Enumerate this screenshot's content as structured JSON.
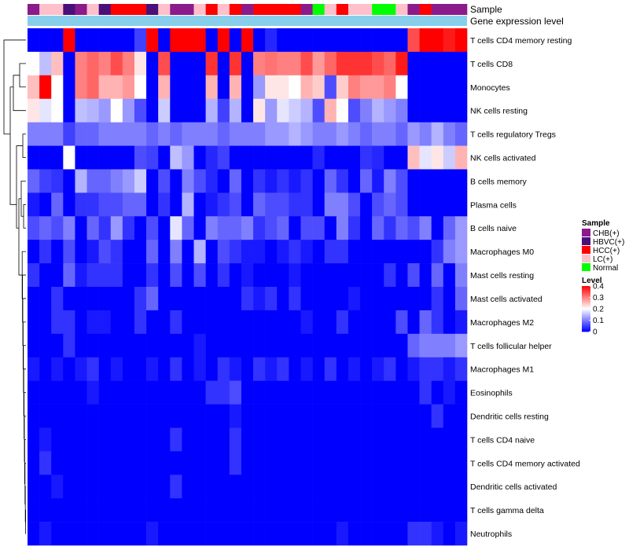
{
  "chart_data": {
    "type": "heatmap",
    "title": "",
    "annotation_labels": [
      "Sample",
      "Gene expression level"
    ],
    "rows": [
      "T cells CD4 memory resting",
      "T cells CD8",
      "Monocytes",
      "NK cells resting",
      "T cells regulatory  Tregs",
      "NK cells activated",
      "B cells memory",
      "Plasma cells",
      "B cells naive",
      "Macrophages M0",
      "Mast cells resting",
      "Mast cells activated",
      "Macrophages M2",
      "T cells follicular helper",
      "Macrophages M1",
      "Eosinophils",
      "Dendritic cells resting",
      "T cells CD4 naive",
      "T cells CD4 memory activated",
      "Dendritic cells activated",
      "T cells gamma delta",
      "Neutrophils"
    ],
    "column_count": 37,
    "sample_groups": [
      "CHB(+)",
      "LC(+)",
      "LC(+)",
      "HBVC(+)",
      "CHB(+)",
      "LC(+)",
      "HBVC(+)",
      "HCC(+)",
      "HCC(+)",
      "HCC(+)",
      "HBVC(+)",
      "LC(+)",
      "CHB(+)",
      "CHB(+)",
      "LC(+)",
      "HCC(+)",
      "LC(+)",
      "HCC(+)",
      "CHB(+)",
      "HCC(+)",
      "HCC(+)",
      "HCC(+)",
      "HCC(+)",
      "CHB(+)",
      "Normal",
      "LC(+)",
      "HCC(+)",
      "LC(+)",
      "LC(+)",
      "Normal",
      "Normal",
      "LC(+)",
      "CHB(+)",
      "HCC(+)",
      "CHB(+)",
      "CHB(+)",
      "CHB(+)"
    ],
    "values": [
      [
        0.0,
        0.0,
        0.0,
        0.4,
        0.0,
        0.0,
        0.0,
        0.0,
        0.0,
        0.05,
        0.4,
        0.0,
        0.4,
        0.4,
        0.4,
        0.0,
        0.4,
        0.0,
        0.4,
        0.0,
        0.03,
        0.0,
        0.0,
        0.0,
        0.0,
        0.0,
        0.0,
        0.0,
        0.0,
        0.0,
        0.0,
        0.0,
        0.34,
        0.4,
        0.4,
        0.38,
        0.4
      ],
      [
        0.2,
        0.15,
        0.25,
        0.0,
        0.3,
        0.32,
        0.3,
        0.34,
        0.3,
        0.22,
        0.0,
        0.34,
        0.0,
        0.0,
        0.0,
        0.36,
        0.0,
        0.36,
        0.0,
        0.3,
        0.31,
        0.3,
        0.3,
        0.34,
        0.28,
        0.32,
        0.36,
        0.36,
        0.36,
        0.34,
        0.32,
        0.38,
        0.0,
        0.0,
        0.0,
        0.0,
        0.0
      ],
      [
        0.25,
        0.4,
        0.2,
        0.0,
        0.3,
        0.32,
        0.26,
        0.26,
        0.28,
        0.2,
        0.0,
        0.26,
        0.0,
        0.0,
        0.0,
        0.26,
        0.0,
        0.26,
        0.0,
        0.12,
        0.22,
        0.22,
        0.2,
        0.26,
        0.24,
        0.06,
        0.24,
        0.3,
        0.28,
        0.28,
        0.3,
        0.2,
        0.0,
        0.0,
        0.0,
        0.0,
        0.0
      ],
      [
        0.22,
        0.18,
        0.2,
        0.0,
        0.15,
        0.14,
        0.12,
        0.2,
        0.12,
        0.06,
        0.0,
        0.16,
        0.0,
        0.0,
        0.0,
        0.14,
        0.05,
        0.14,
        0.0,
        0.22,
        0.12,
        0.18,
        0.16,
        0.14,
        0.06,
        0.26,
        0.2,
        0.06,
        0.1,
        0.14,
        0.12,
        0.1,
        0.0,
        0.0,
        0.0,
        0.0,
        0.0
      ],
      [
        0.1,
        0.1,
        0.1,
        0.05,
        0.08,
        0.08,
        0.1,
        0.1,
        0.1,
        0.1,
        0.08,
        0.1,
        0.08,
        0.1,
        0.1,
        0.1,
        0.08,
        0.1,
        0.1,
        0.1,
        0.12,
        0.12,
        0.14,
        0.12,
        0.1,
        0.1,
        0.12,
        0.1,
        0.08,
        0.1,
        0.1,
        0.08,
        0.12,
        0.1,
        0.14,
        0.1,
        0.08
      ],
      [
        0.0,
        0.0,
        0.0,
        0.2,
        0.0,
        0.0,
        0.0,
        0.0,
        0.0,
        0.06,
        0.05,
        0.0,
        0.15,
        0.12,
        0.0,
        0.03,
        0.05,
        0.0,
        0.0,
        0.0,
        0.0,
        0.0,
        0.0,
        0.0,
        0.03,
        0.0,
        0.0,
        0.0,
        0.04,
        0.03,
        0.0,
        0.0,
        0.25,
        0.18,
        0.22,
        0.16,
        0.26
      ],
      [
        0.08,
        0.05,
        0.04,
        0.0,
        0.14,
        0.08,
        0.08,
        0.1,
        0.12,
        0.16,
        0.0,
        0.06,
        0.0,
        0.1,
        0.06,
        0.03,
        0.0,
        0.08,
        0.0,
        0.04,
        0.02,
        0.04,
        0.02,
        0.04,
        0.0,
        0.08,
        0.04,
        0.0,
        0.08,
        0.02,
        0.1,
        0.06,
        0.0,
        0.0,
        0.0,
        0.0,
        0.0
      ],
      [
        0.02,
        0.0,
        0.08,
        0.0,
        0.04,
        0.04,
        0.06,
        0.06,
        0.08,
        0.08,
        0.0,
        0.04,
        0.0,
        0.14,
        0.0,
        0.02,
        0.04,
        0.06,
        0.0,
        0.08,
        0.06,
        0.06,
        0.04,
        0.04,
        0.0,
        0.1,
        0.1,
        0.06,
        0.0,
        0.06,
        0.08,
        0.06,
        0.0,
        0.0,
        0.0,
        0.0,
        0.0
      ],
      [
        0.06,
        0.08,
        0.06,
        0.1,
        0.0,
        0.08,
        0.04,
        0.12,
        0.04,
        0.0,
        0.06,
        0.0,
        0.18,
        0.08,
        0.0,
        0.1,
        0.08,
        0.08,
        0.1,
        0.04,
        0.06,
        0.08,
        0.0,
        0.06,
        0.06,
        0.0,
        0.1,
        0.04,
        0.0,
        0.08,
        0.04,
        0.08,
        0.06,
        0.1,
        0.0,
        0.08,
        0.12
      ],
      [
        0.0,
        0.04,
        0.0,
        0.06,
        0.0,
        0.02,
        0.06,
        0.04,
        0.0,
        0.0,
        0.08,
        0.0,
        0.1,
        0.0,
        0.14,
        0.0,
        0.06,
        0.04,
        0.02,
        0.02,
        0.0,
        0.02,
        0.04,
        0.02,
        0.0,
        0.04,
        0.04,
        0.0,
        0.0,
        0.0,
        0.0,
        0.0,
        0.0,
        0.0,
        0.04,
        0.1,
        0.12
      ],
      [
        0.04,
        0.0,
        0.0,
        0.08,
        0.02,
        0.04,
        0.04,
        0.04,
        0.0,
        0.0,
        0.04,
        0.0,
        0.06,
        0.0,
        0.06,
        0.0,
        0.04,
        0.0,
        0.02,
        0.0,
        0.0,
        0.0,
        0.02,
        0.0,
        0.0,
        0.0,
        0.0,
        0.0,
        0.0,
        0.0,
        0.04,
        0.0,
        0.06,
        0.0,
        0.08,
        0.0,
        0.1
      ],
      [
        0.0,
        0.0,
        0.04,
        0.0,
        0.0,
        0.0,
        0.0,
        0.0,
        0.0,
        0.04,
        0.08,
        0.0,
        0.0,
        0.0,
        0.0,
        0.0,
        0.0,
        0.0,
        0.04,
        0.02,
        0.04,
        0.0,
        0.04,
        0.0,
        0.0,
        0.0,
        0.0,
        0.02,
        0.0,
        0.0,
        0.0,
        0.0,
        0.0,
        0.0,
        0.04,
        0.0,
        0.08
      ],
      [
        0.0,
        0.0,
        0.04,
        0.04,
        0.0,
        0.02,
        0.02,
        0.0,
        0.0,
        0.04,
        0.0,
        0.0,
        0.04,
        0.0,
        0.0,
        0.0,
        0.0,
        0.0,
        0.0,
        0.0,
        0.0,
        0.0,
        0.0,
        0.02,
        0.0,
        0.0,
        0.04,
        0.0,
        0.0,
        0.0,
        0.0,
        0.06,
        0.0,
        0.08,
        0.04,
        0.0,
        0.02
      ],
      [
        0.0,
        0.0,
        0.0,
        0.04,
        0.0,
        0.0,
        0.0,
        0.0,
        0.0,
        0.0,
        0.0,
        0.0,
        0.0,
        0.0,
        0.02,
        0.0,
        0.0,
        0.0,
        0.0,
        0.0,
        0.0,
        0.0,
        0.0,
        0.0,
        0.0,
        0.0,
        0.0,
        0.0,
        0.0,
        0.0,
        0.0,
        0.0,
        0.08,
        0.1,
        0.1,
        0.1,
        0.12
      ],
      [
        0.02,
        0.0,
        0.02,
        0.0,
        0.02,
        0.04,
        0.0,
        0.02,
        0.0,
        0.0,
        0.02,
        0.0,
        0.04,
        0.0,
        0.02,
        0.0,
        0.04,
        0.02,
        0.0,
        0.04,
        0.02,
        0.04,
        0.0,
        0.02,
        0.0,
        0.04,
        0.0,
        0.02,
        0.0,
        0.02,
        0.04,
        0.0,
        0.02,
        0.04,
        0.04,
        0.02,
        0.04
      ],
      [
        0.0,
        0.0,
        0.0,
        0.0,
        0.0,
        0.02,
        0.0,
        0.0,
        0.0,
        0.0,
        0.0,
        0.0,
        0.0,
        0.0,
        0.0,
        0.04,
        0.04,
        0.06,
        0.0,
        0.0,
        0.0,
        0.0,
        0.0,
        0.0,
        0.0,
        0.0,
        0.0,
        0.0,
        0.0,
        0.0,
        0.0,
        0.0,
        0.0,
        0.04,
        0.0,
        0.02,
        0.0
      ],
      [
        0.0,
        0.0,
        0.0,
        0.0,
        0.0,
        0.0,
        0.0,
        0.0,
        0.0,
        0.0,
        0.0,
        0.0,
        0.0,
        0.0,
        0.0,
        0.0,
        0.0,
        0.02,
        0.0,
        0.0,
        0.0,
        0.0,
        0.0,
        0.0,
        0.0,
        0.0,
        0.0,
        0.0,
        0.0,
        0.0,
        0.0,
        0.0,
        0.0,
        0.0,
        0.04,
        0.0,
        0.0
      ],
      [
        0.0,
        0.02,
        0.0,
        0.0,
        0.0,
        0.0,
        0.0,
        0.0,
        0.0,
        0.0,
        0.0,
        0.0,
        0.04,
        0.0,
        0.0,
        0.0,
        0.0,
        0.04,
        0.0,
        0.0,
        0.0,
        0.0,
        0.0,
        0.0,
        0.0,
        0.0,
        0.0,
        0.0,
        0.0,
        0.0,
        0.0,
        0.0,
        0.0,
        0.0,
        0.0,
        0.0,
        0.0
      ],
      [
        0.0,
        0.04,
        0.0,
        0.0,
        0.0,
        0.0,
        0.0,
        0.0,
        0.0,
        0.0,
        0.0,
        0.0,
        0.0,
        0.0,
        0.0,
        0.0,
        0.0,
        0.04,
        0.0,
        0.0,
        0.0,
        0.0,
        0.0,
        0.0,
        0.0,
        0.0,
        0.0,
        0.0,
        0.0,
        0.0,
        0.0,
        0.0,
        0.0,
        0.0,
        0.0,
        0.0,
        0.0
      ],
      [
        0.0,
        0.0,
        0.02,
        0.0,
        0.0,
        0.0,
        0.0,
        0.0,
        0.0,
        0.0,
        0.0,
        0.0,
        0.04,
        0.0,
        0.0,
        0.0,
        0.0,
        0.0,
        0.0,
        0.0,
        0.0,
        0.0,
        0.0,
        0.0,
        0.0,
        0.0,
        0.0,
        0.0,
        0.0,
        0.0,
        0.0,
        0.0,
        0.0,
        0.0,
        0.0,
        0.0,
        0.0
      ],
      [
        0.0,
        0.0,
        0.0,
        0.0,
        0.0,
        0.0,
        0.0,
        0.0,
        0.0,
        0.0,
        0.0,
        0.0,
        0.0,
        0.0,
        0.0,
        0.0,
        0.0,
        0.0,
        0.0,
        0.0,
        0.0,
        0.0,
        0.0,
        0.0,
        0.0,
        0.0,
        0.0,
        0.0,
        0.0,
        0.0,
        0.0,
        0.0,
        0.0,
        0.0,
        0.0,
        0.0,
        0.0
      ],
      [
        0.0,
        0.02,
        0.0,
        0.0,
        0.0,
        0.0,
        0.0,
        0.0,
        0.0,
        0.0,
        0.02,
        0.0,
        0.0,
        0.0,
        0.0,
        0.0,
        0.0,
        0.0,
        0.0,
        0.0,
        0.0,
        0.0,
        0.0,
        0.0,
        0.0,
        0.0,
        0.02,
        0.0,
        0.0,
        0.0,
        0.0,
        0.0,
        0.04,
        0.04,
        0.02,
        0.0,
        0.02
      ]
    ],
    "gene_expression_color": "#87CEEB",
    "color_scale": {
      "min": 0,
      "max": 0.4,
      "stops": [
        "#0000FF",
        "#FFFFFF",
        "#FF0000"
      ],
      "ticks": [
        "0",
        "0.1",
        "0.2",
        "0.3",
        "0.4"
      ]
    }
  },
  "legend": {
    "sample_title": "Sample",
    "sample_items": [
      {
        "label": "CHB(+)",
        "color": "#8B1A8B"
      },
      {
        "label": "HBVC(+)",
        "color": "#4B0F7A"
      },
      {
        "label": "HCC(+)",
        "color": "#FF0000"
      },
      {
        "label": "LC(+)",
        "color": "#FFC0CB"
      },
      {
        "label": "Normal",
        "color": "#00FF00"
      }
    ],
    "level_title": "Level"
  }
}
